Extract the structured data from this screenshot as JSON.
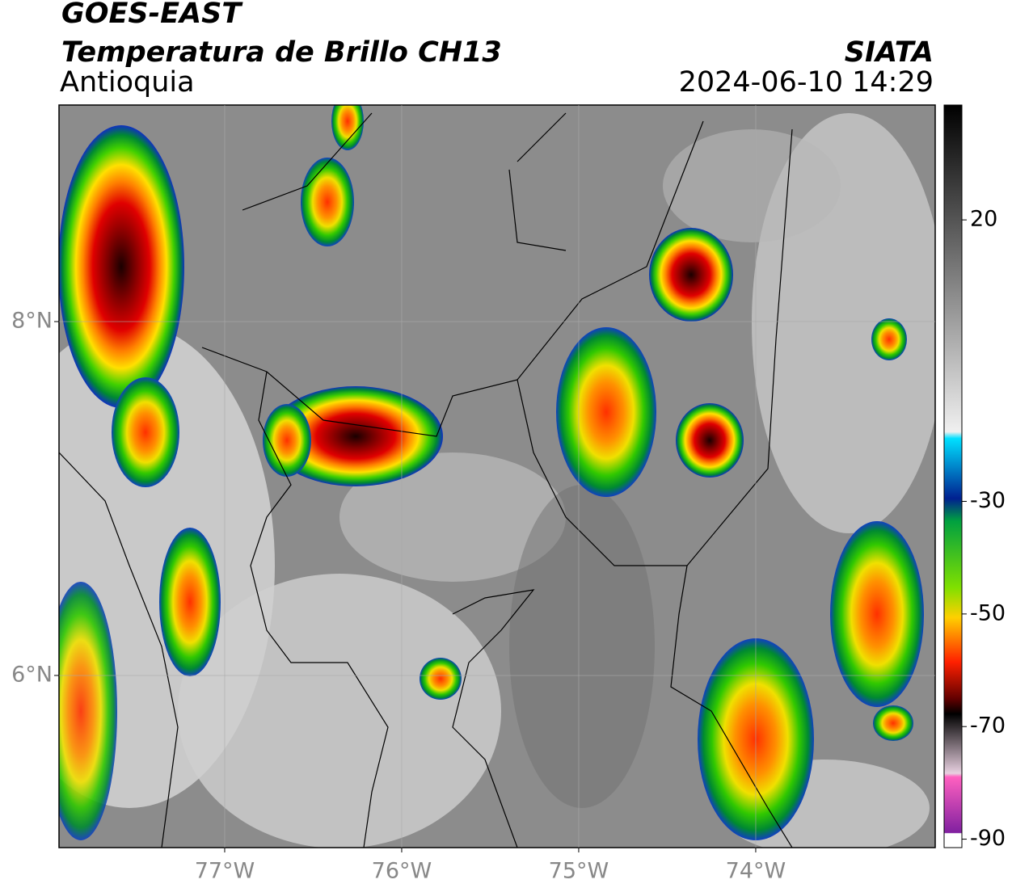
{
  "header": {
    "satellite": "GOES-EAST",
    "product": "Temperatura de Brillo CH13",
    "region": "Antioquia",
    "source": "SIATA",
    "datetime": "2024-06-10 14:29"
  },
  "map": {
    "xlim": [
      -77.936,
      -72.986
    ],
    "ylim": [
      5.027,
      9.224
    ],
    "xticks": [
      {
        "value": -77,
        "label": "77°W"
      },
      {
        "value": -76,
        "label": "76°W"
      },
      {
        "value": -75,
        "label": "75°W"
      },
      {
        "value": -74,
        "label": "74°W"
      }
    ],
    "yticks": [
      {
        "value": 8,
        "label": "8°N"
      },
      {
        "value": 6,
        "label": "6°N"
      }
    ],
    "grid": true
  },
  "colorbar": {
    "lim": [
      -91.5,
      40.4
    ],
    "ticks": [
      20,
      -30,
      -50,
      -70,
      -90
    ]
  }
}
